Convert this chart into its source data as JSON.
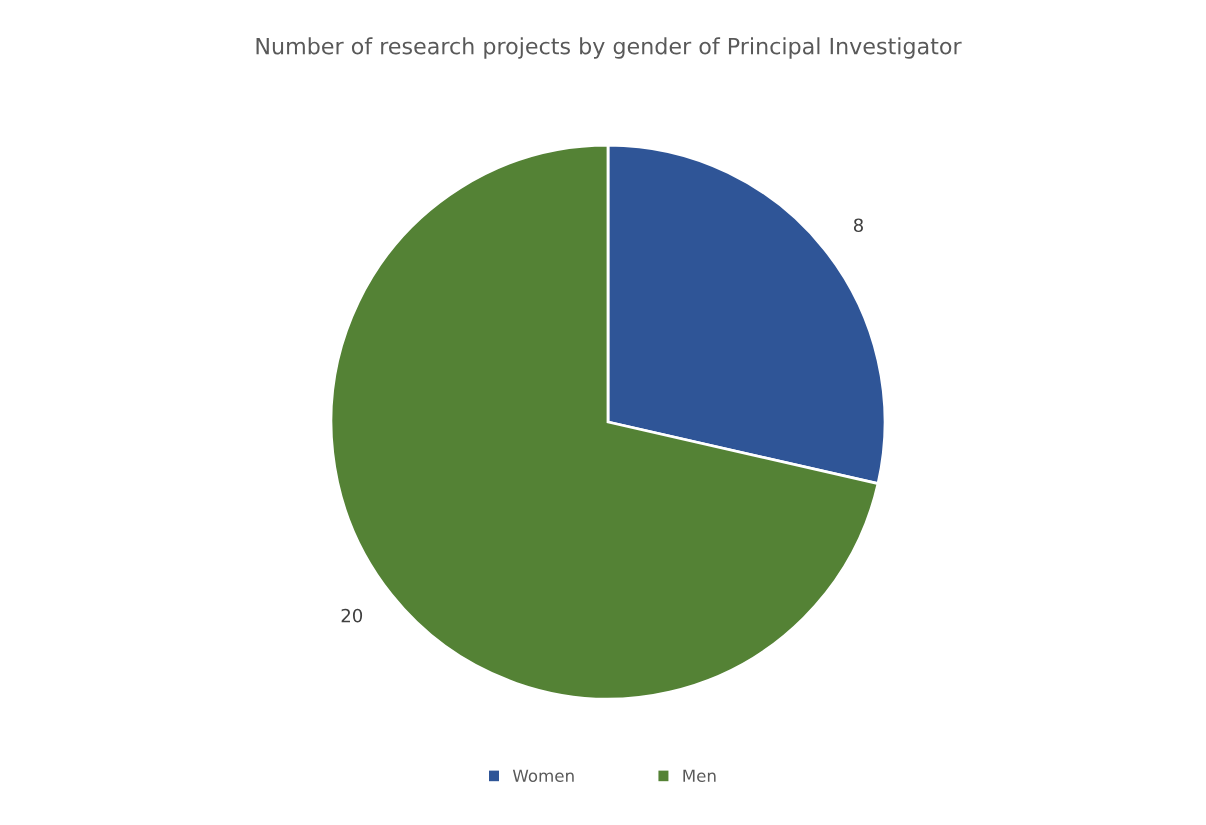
{
  "chart_data": {
    "type": "pie",
    "title": "Number of research projects by gender of Principal Investigator",
    "categories": [
      "Women",
      "Men"
    ],
    "values": [
      8,
      20
    ],
    "colors": [
      "#2f5597",
      "#548235"
    ],
    "data_labels": true,
    "legend": "bottom"
  }
}
